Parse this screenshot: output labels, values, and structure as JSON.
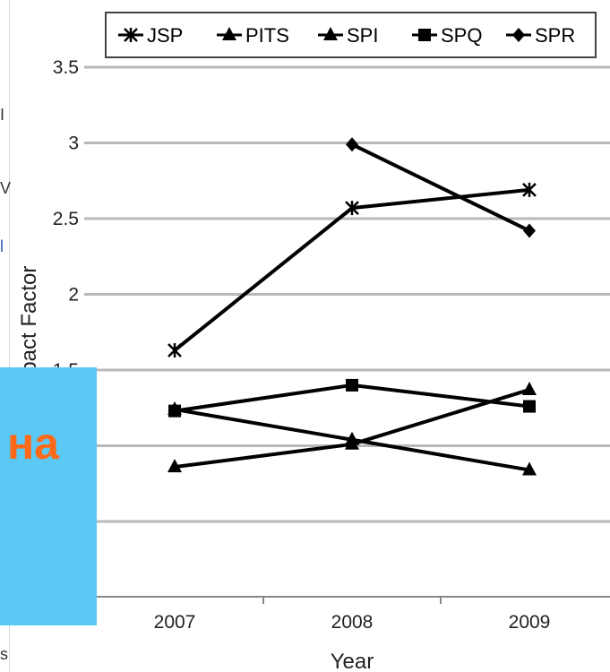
{
  "chart_data": {
    "type": "line",
    "xlabel": "Year",
    "ylabel": "Impact Factor",
    "x": [
      "2007",
      "2008",
      "2009"
    ],
    "ylim": [
      0,
      3.5
    ],
    "yticks": [
      "3.5",
      "3",
      "2.5",
      "2",
      "1.5"
    ],
    "grid": true,
    "legend_position": "top",
    "series": [
      {
        "name": "JSP",
        "marker": "asterisk",
        "values": [
          1.63,
          2.57,
          2.69
        ]
      },
      {
        "name": "PITS",
        "marker": "triangle",
        "values": [
          0.86,
          1.01,
          1.37
        ]
      },
      {
        "name": "SPI",
        "marker": "triangle",
        "values": [
          1.24,
          1.04,
          0.84
        ]
      },
      {
        "name": "SPQ",
        "marker": "square",
        "values": [
          1.23,
          1.4,
          1.26
        ]
      },
      {
        "name": "SPR",
        "marker": "diamond",
        "values": [
          null,
          2.99,
          2.42
        ]
      }
    ]
  },
  "overlay": {
    "text": "на",
    "background": "#5bc8f5",
    "text_color": "#ff6a1a"
  },
  "left_edge": {
    "fragments": [
      "I",
      "V",
      "l",
      "s"
    ]
  }
}
